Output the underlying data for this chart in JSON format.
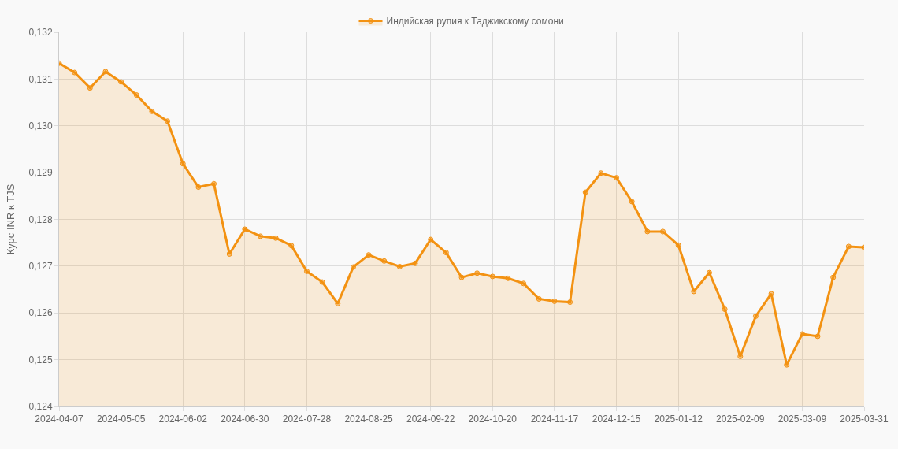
{
  "chart_data": {
    "type": "area",
    "ylabel": "Курс INR к TJS",
    "categories": [
      "2024-04-07",
      null,
      null,
      null,
      "2024-05-05",
      null,
      null,
      null,
      "2024-06-02",
      null,
      null,
      null,
      "2024-06-30",
      null,
      null,
      null,
      "2024-07-28",
      null,
      null,
      null,
      "2024-08-25",
      null,
      null,
      null,
      "2024-09-22",
      null,
      null,
      null,
      "2024-10-20",
      null,
      null,
      null,
      "2024-11-17",
      null,
      null,
      null,
      "2024-12-15",
      null,
      null,
      null,
      "2025-01-12",
      null,
      null,
      null,
      "2025-02-09",
      null,
      null,
      null,
      "2025-03-09",
      null,
      null,
      null,
      "2025-03-31"
    ],
    "series": [
      {
        "name": "Индийская рупия к Таджикскому сомони",
        "color": "#f39212",
        "values": [
          0.13134,
          0.13114,
          0.13081,
          0.13116,
          0.13094,
          0.13066,
          0.13031,
          0.1301,
          0.12919,
          0.12869,
          0.12876,
          0.12726,
          0.12779,
          0.12764,
          0.1276,
          0.12744,
          0.12689,
          0.12666,
          0.1262,
          0.12698,
          0.12724,
          0.12711,
          0.12699,
          0.12706,
          0.12757,
          0.12729,
          0.12676,
          0.12685,
          0.12678,
          0.12674,
          0.12663,
          0.1263,
          0.12625,
          0.12623,
          0.12858,
          0.12899,
          0.12889,
          0.12838,
          0.12774,
          0.12774,
          0.12745,
          0.12646,
          0.12686,
          0.12608,
          0.12507,
          0.12593,
          0.12641,
          0.12489,
          0.12555,
          0.1255,
          0.12676,
          0.12742,
          0.1274
        ]
      }
    ],
    "ylim": [
      0.124,
      0.132
    ],
    "yticks": [
      {
        "value": 0.124,
        "label": "0,124"
      },
      {
        "value": 0.125,
        "label": "0,125"
      },
      {
        "value": 0.126,
        "label": "0,126"
      },
      {
        "value": 0.127,
        "label": "0,127"
      },
      {
        "value": 0.128,
        "label": "0,128"
      },
      {
        "value": 0.129,
        "label": "0,129"
      },
      {
        "value": 0.13,
        "label": "0,130"
      },
      {
        "value": 0.131,
        "label": "0,131"
      },
      {
        "value": 0.132,
        "label": "0,132"
      }
    ],
    "grid": true,
    "legend": "top",
    "marker": "circle",
    "line_style": "solid"
  }
}
